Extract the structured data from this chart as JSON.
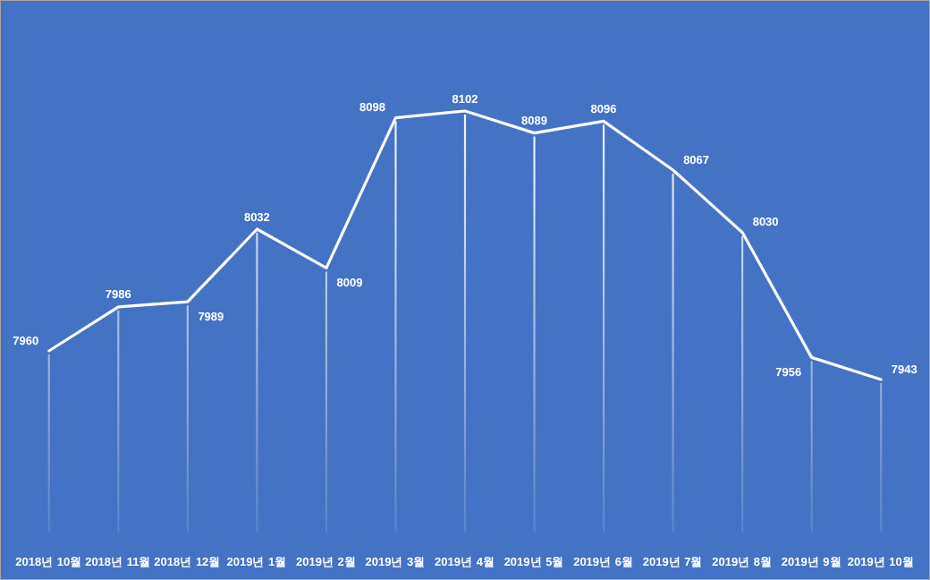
{
  "chart_data": {
    "type": "line",
    "categories": [
      "2018년 10월",
      "2018년 11월",
      "2018년 12월",
      "2019년 1월",
      "2019년 2월",
      "2019년 3월",
      "2019년 4월",
      "2019년 5월",
      "2019년 6월",
      "2019년 7월",
      "2019년 8월",
      "2019년 9월",
      "2019년 10월"
    ],
    "series": [
      {
        "color": "#ffffff",
        "values": [
          7960,
          7986,
          7989,
          8032,
          8009,
          8098,
          8102,
          8089,
          8096,
          8067,
          8030,
          7956,
          7943
        ]
      }
    ],
    "data_labels": true,
    "grid": "x",
    "marker": "none",
    "line_style": "solid"
  }
}
